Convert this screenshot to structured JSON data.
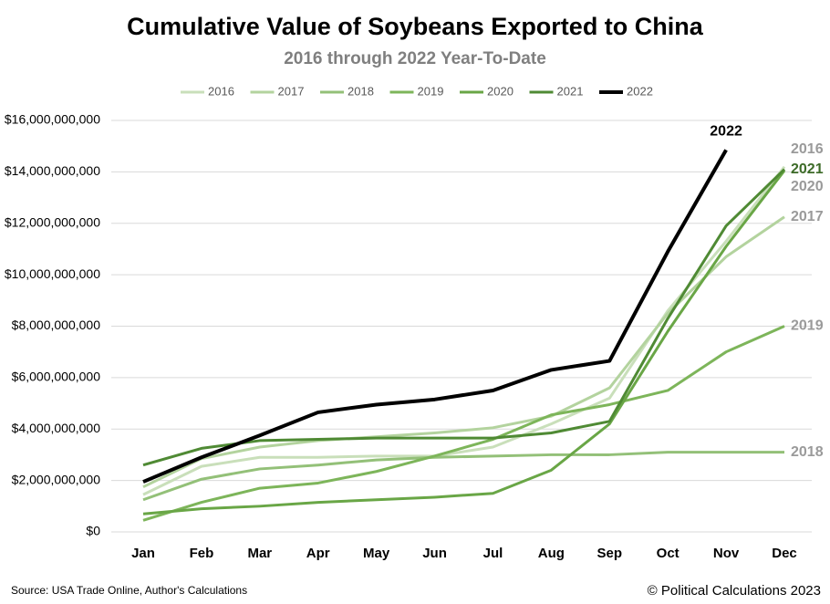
{
  "chart_data": {
    "type": "line",
    "title": "Cumulative Value of Soybeans Exported to China",
    "subtitle": "2016 through 2022 Year-To-Date",
    "categories": [
      "Jan",
      "Feb",
      "Mar",
      "Apr",
      "May",
      "Jun",
      "Jul",
      "Aug",
      "Sep",
      "Oct",
      "Nov",
      "Dec"
    ],
    "series": [
      {
        "name": "2016",
        "color": "#c9dfba",
        "values": [
          1450000000,
          2550000000,
          2900000000,
          2900000000,
          2950000000,
          2950000000,
          3300000000,
          4200000000,
          5200000000,
          8600000000,
          11300000000,
          14200000000
        ]
      },
      {
        "name": "2017",
        "color": "#b3d39e",
        "values": [
          1750000000,
          2850000000,
          3300000000,
          3550000000,
          3700000000,
          3850000000,
          4050000000,
          4500000000,
          5600000000,
          8500000000,
          10700000000,
          12250000000
        ]
      },
      {
        "name": "2018",
        "color": "#93c078",
        "values": [
          1250000000,
          2050000000,
          2450000000,
          2600000000,
          2800000000,
          2900000000,
          2950000000,
          3000000000,
          3000000000,
          3100000000,
          3100000000,
          3100000000
        ]
      },
      {
        "name": "2019",
        "color": "#7db55a",
        "values": [
          450000000,
          1150000000,
          1700000000,
          1900000000,
          2350000000,
          2950000000,
          3600000000,
          4550000000,
          4950000000,
          5500000000,
          7000000000,
          8000000000
        ]
      },
      {
        "name": "2020",
        "color": "#69a646",
        "values": [
          700000000,
          900000000,
          1000000000,
          1150000000,
          1250000000,
          1350000000,
          1500000000,
          2400000000,
          4200000000,
          7800000000,
          11100000000,
          14050000000
        ]
      },
      {
        "name": "2021",
        "color": "#4f8a34",
        "values": [
          2600000000,
          3250000000,
          3550000000,
          3600000000,
          3650000000,
          3650000000,
          3650000000,
          3850000000,
          4300000000,
          8300000000,
          11900000000,
          14100000000
        ]
      },
      {
        "name": "2022",
        "color": "#000000",
        "values": [
          1950000000,
          2900000000,
          3750000000,
          4650000000,
          4950000000,
          5150000000,
          5500000000,
          6300000000,
          6650000000,
          10900000000,
          14850000000,
          null
        ]
      }
    ],
    "ylim": [
      0,
      16000000000
    ],
    "yticks": [
      {
        "value": 0,
        "label": "$0"
      },
      {
        "value": 2000000000,
        "label": "$2,000,000,000"
      },
      {
        "value": 4000000000,
        "label": "$4,000,000,000"
      },
      {
        "value": 6000000000,
        "label": "$6,000,000,000"
      },
      {
        "value": 8000000000,
        "label": "$8,000,000,000"
      },
      {
        "value": 10000000000,
        "label": "$10,000,000,000"
      },
      {
        "value": 12000000000,
        "label": "$12,000,000,000"
      },
      {
        "value": 14000000000,
        "label": "$14,000,000,000"
      },
      {
        "value": 16000000000,
        "label": "$16,000,000,000"
      }
    ],
    "grid": true,
    "legend": "top",
    "source": "Source: USA Trade Online, Author's Calculations",
    "credit": "© Political Calculations 2023"
  }
}
